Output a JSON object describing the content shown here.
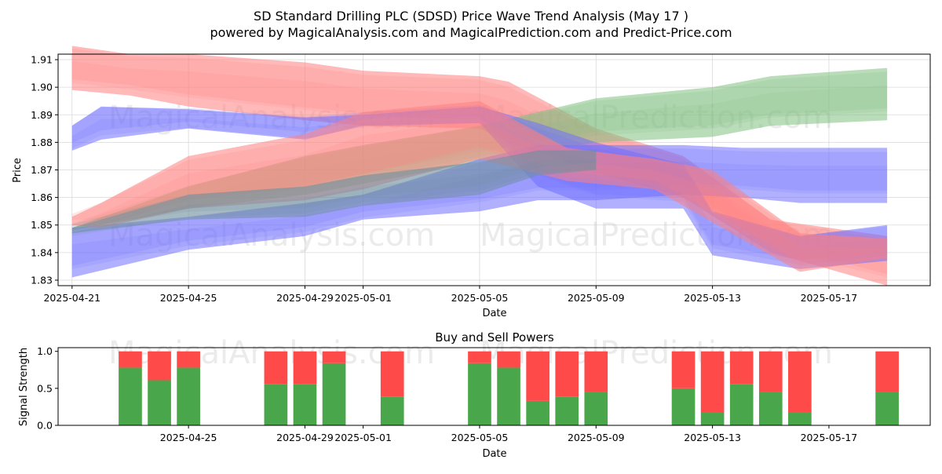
{
  "title_line1": "SD Standard Drilling PLC (SDSD) Price Wave Trend Analysis (May 17 )",
  "title_line2": "powered by MagicalAnalysis.com and MagicalPrediction.com and Predict-Price.com",
  "watermarks": [
    "MagicalAnalysis.com",
    "MagicalPrediction.com"
  ],
  "chart_data": [
    {
      "type": "area",
      "title": "",
      "xlabel": "Date",
      "ylabel": "Price",
      "x_tick_labels": [
        "2025-04-21",
        "2025-04-25",
        "2025-04-29",
        "2025-05-01",
        "2025-05-05",
        "2025-05-09",
        "2025-05-13",
        "2025-05-17"
      ],
      "x_tick_dates": [
        "2025-04-21",
        "2025-04-25",
        "2025-04-29",
        "2025-05-01",
        "2025-05-05",
        "2025-05-09",
        "2025-05-13",
        "2025-05-17"
      ],
      "y_ticks": [
        1.83,
        1.84,
        1.85,
        1.86,
        1.87,
        1.88,
        1.89,
        1.9,
        1.91
      ],
      "y_tick_labels": [
        "1.83",
        "1.84",
        "1.85",
        "1.86",
        "1.87",
        "1.88",
        "1.89",
        "1.90",
        "1.91"
      ],
      "xlim": [
        "2025-04-20",
        "2025-05-20"
      ],
      "ylim": [
        1.828,
        1.912
      ],
      "grid": true,
      "series": [
        {
          "color": "#ff7f7f",
          "dates": [
            "2025-04-21",
            "2025-04-23",
            "2025-04-25",
            "2025-04-29",
            "2025-05-01",
            "2025-05-05",
            "2025-05-06",
            "2025-05-09",
            "2025-05-12",
            "2025-05-15",
            "2025-05-19"
          ],
          "upper": [
            1.915,
            1.912,
            1.912,
            1.909,
            1.906,
            1.904,
            1.902,
            1.885,
            1.875,
            1.852,
            1.846
          ],
          "lower": [
            1.899,
            1.897,
            1.893,
            1.888,
            1.886,
            1.885,
            1.88,
            1.869,
            1.86,
            1.84,
            1.828
          ]
        },
        {
          "color": "#7fbf7f",
          "dates": [
            "2025-04-21",
            "2025-04-25",
            "2025-04-29",
            "2025-05-01",
            "2025-05-05",
            "2025-05-09",
            "2025-05-13",
            "2025-05-15",
            "2025-05-19"
          ],
          "upper": [
            1.849,
            1.864,
            1.875,
            1.879,
            1.886,
            1.896,
            1.9,
            1.904,
            1.907
          ],
          "lower": [
            1.848,
            1.856,
            1.861,
            1.865,
            1.873,
            1.88,
            1.882,
            1.886,
            1.888
          ]
        },
        {
          "color": "#6f6fff",
          "dates": [
            "2025-04-21",
            "2025-04-25",
            "2025-04-29",
            "2025-05-01",
            "2025-05-05",
            "2025-05-07",
            "2025-05-09",
            "2025-05-12",
            "2025-05-14",
            "2025-05-16",
            "2025-05-19"
          ],
          "upper": [
            1.849,
            1.853,
            1.858,
            1.861,
            1.874,
            1.879,
            1.879,
            1.879,
            1.878,
            1.878,
            1.878
          ],
          "lower": [
            1.831,
            1.841,
            1.846,
            1.852,
            1.855,
            1.859,
            1.859,
            1.861,
            1.86,
            1.858,
            1.858
          ]
        },
        {
          "color": "#6f6fff",
          "dates": [
            "2025-04-21",
            "2025-04-22",
            "2025-04-25",
            "2025-04-29",
            "2025-05-01",
            "2025-05-05",
            "2025-05-07",
            "2025-05-09",
            "2025-05-12",
            "2025-05-13",
            "2025-05-16",
            "2025-05-19"
          ],
          "upper": [
            1.886,
            1.893,
            1.892,
            1.889,
            1.89,
            1.893,
            1.887,
            1.88,
            1.872,
            1.855,
            1.846,
            1.85
          ],
          "lower": [
            1.877,
            1.881,
            1.885,
            1.881,
            1.886,
            1.887,
            1.864,
            1.856,
            1.856,
            1.839,
            1.834,
            1.837
          ]
        },
        {
          "color": "#ff7f7f",
          "dates": [
            "2025-04-21",
            "2025-04-22",
            "2025-04-25",
            "2025-04-29",
            "2025-05-01",
            "2025-05-05",
            "2025-05-08",
            "2025-05-11",
            "2025-05-13",
            "2025-05-16",
            "2025-05-19"
          ],
          "upper": [
            1.853,
            1.858,
            1.875,
            1.883,
            1.891,
            1.895,
            1.878,
            1.874,
            1.87,
            1.847,
            1.845
          ],
          "lower": [
            1.85,
            1.849,
            1.856,
            1.859,
            1.863,
            1.874,
            1.866,
            1.863,
            1.851,
            1.833,
            1.838
          ]
        },
        {
          "color": "#6f8f9f",
          "dates": [
            "2025-04-21",
            "2025-04-25",
            "2025-04-29",
            "2025-05-01",
            "2025-05-05",
            "2025-05-07",
            "2025-05-09"
          ],
          "upper": [
            1.849,
            1.861,
            1.864,
            1.868,
            1.873,
            1.877,
            1.877
          ],
          "lower": [
            1.847,
            1.852,
            1.853,
            1.857,
            1.861,
            1.868,
            1.87
          ]
        }
      ]
    },
    {
      "type": "bar",
      "title": "Buy and Sell Powers",
      "xlabel": "Date",
      "ylabel": "Signal Strength",
      "x_tick_labels": [
        "2025-04-25",
        "2025-04-29",
        "2025-05-01",
        "2025-05-05",
        "2025-05-09",
        "2025-05-13",
        "2025-05-17"
      ],
      "x_tick_dates": [
        "2025-04-25",
        "2025-04-29",
        "2025-05-01",
        "2025-05-05",
        "2025-05-09",
        "2025-05-13",
        "2025-05-17"
      ],
      "y_ticks": [
        0.0,
        0.5,
        1.0
      ],
      "y_tick_labels": [
        "0.0",
        "0.5",
        "1.0"
      ],
      "ylim": [
        0,
        1.05
      ],
      "xlim": [
        "2025-04-20",
        "2025-05-20"
      ],
      "buy_color": "#4aa64a",
      "sell_color": "#ff4a4a",
      "dates": [
        "2025-04-23",
        "2025-04-24",
        "2025-04-25",
        "2025-04-28",
        "2025-04-29",
        "2025-04-30",
        "2025-05-02",
        "2025-05-05",
        "2025-05-06",
        "2025-05-07",
        "2025-05-08",
        "2025-05-09",
        "2025-05-12",
        "2025-05-13",
        "2025-05-14",
        "2025-05-15",
        "2025-05-16",
        "2025-05-19"
      ],
      "buy": [
        0.78,
        0.61,
        0.78,
        0.56,
        0.56,
        0.84,
        0.39,
        0.84,
        0.78,
        0.33,
        0.39,
        0.45,
        0.5,
        0.17,
        0.56,
        0.45,
        0.17,
        0.45
      ],
      "sell": [
        0.22,
        0.39,
        0.22,
        0.44,
        0.44,
        0.16,
        0.61,
        0.16,
        0.22,
        0.67,
        0.61,
        0.55,
        0.5,
        0.83,
        0.44,
        0.55,
        0.83,
        0.55
      ]
    }
  ]
}
